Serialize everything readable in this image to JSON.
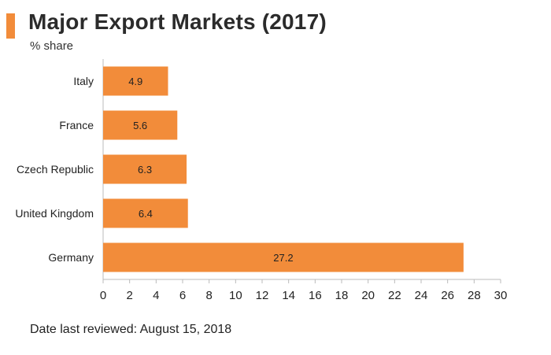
{
  "header": {
    "title": "Major Export Markets (2017)",
    "subtitle": "% share"
  },
  "footer": {
    "note": "Date last reviewed: August 15, 2018"
  },
  "colors": {
    "accent": "#f28c3a",
    "bar": "#f28c3a",
    "axis": "#bbbbbb",
    "text": "#222222"
  },
  "chart_data": {
    "type": "bar",
    "orientation": "horizontal",
    "title": "Major Export Markets (2017)",
    "subtitle": "% share",
    "categories": [
      "Italy",
      "France",
      "Czech Republic",
      "United Kingdom",
      "Germany"
    ],
    "values": [
      4.9,
      5.6,
      6.3,
      6.4,
      27.2
    ],
    "data_labels": [
      "4.9",
      "5.6",
      "6.3",
      "6.4",
      "27.2"
    ],
    "xlim": [
      0,
      30
    ],
    "xticks": [
      0,
      2,
      4,
      6,
      8,
      10,
      12,
      14,
      16,
      18,
      20,
      22,
      24,
      26,
      28,
      30
    ],
    "xlabel": "",
    "ylabel": "",
    "grid": false,
    "legend": "none"
  }
}
